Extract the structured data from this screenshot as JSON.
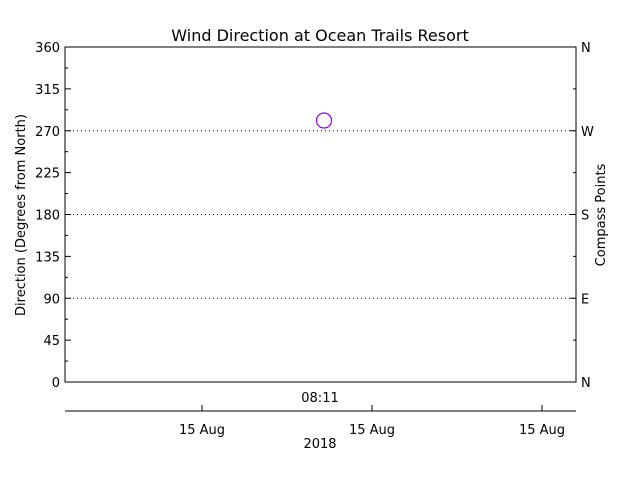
{
  "chart_data": {
    "type": "scatter",
    "title": "Wind Direction at Ocean Trails Resort",
    "ylabel": "Direction (Degrees from North)",
    "y2label": "Compass Points",
    "ylim": [
      0,
      360
    ],
    "y_ticks": [
      0,
      45,
      90,
      135,
      180,
      225,
      270,
      315,
      360
    ],
    "y_tick_labels": [
      "0",
      "45",
      "90",
      "135",
      "180",
      "225",
      "270",
      "315",
      "360"
    ],
    "y2_ticks": [
      0,
      90,
      180,
      270,
      360
    ],
    "y2_tick_labels": [
      "N",
      "E",
      "S",
      "W",
      "N"
    ],
    "reference_lines": [
      90,
      180,
      270
    ],
    "x_label_top": "08:11",
    "x_ticks": [
      "15 Aug",
      "15 Aug",
      "15 Aug"
    ],
    "xlabel": "2018",
    "grid": false,
    "marker": "open-circle",
    "marker_color": "#8800ff",
    "points": [
      {
        "x": "08:11",
        "y": 281
      }
    ]
  }
}
